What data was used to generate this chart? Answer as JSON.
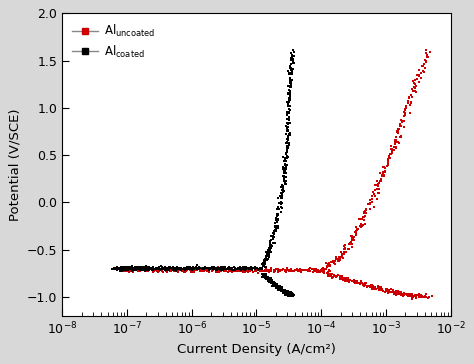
{
  "xlabel": "Current Density (A/cm²)",
  "ylabel": "Potential (V/SCE)",
  "xlim": [
    1e-08,
    0.01
  ],
  "ylim": [
    -1.2,
    2.0
  ],
  "yticks": [
    -1.0,
    -0.5,
    0.0,
    0.5,
    1.0,
    1.5,
    2.0
  ],
  "background_color": "#d8d8d8",
  "plot_bg_color": "#ffffff",
  "red_passive_log_x": [
    -7.1,
    -6.8,
    -6.5,
    -6.2,
    -5.9,
    -5.6,
    -5.3,
    -5.0,
    -4.7,
    -4.4,
    -4.1,
    -3.9
  ],
  "red_passive_y": [
    -0.72,
    -0.72,
    -0.72,
    -0.72,
    -0.72,
    -0.72,
    -0.72,
    -0.72,
    -0.72,
    -0.72,
    -0.72,
    -0.72
  ],
  "red_anodic_log_x": [
    -3.9,
    -3.7,
    -3.5,
    -3.3,
    -3.1,
    -2.9,
    -2.75,
    -2.55,
    -2.35
  ],
  "red_anodic_y": [
    -0.68,
    -0.58,
    -0.38,
    -0.1,
    0.22,
    0.55,
    0.85,
    1.25,
    1.6
  ],
  "red_cathodic_log_x": [
    -3.9,
    -3.7,
    -3.5,
    -3.3,
    -3.1,
    -2.9,
    -2.75,
    -2.55,
    -2.35
  ],
  "red_cathodic_y": [
    -0.76,
    -0.8,
    -0.84,
    -0.88,
    -0.92,
    -0.95,
    -0.97,
    -0.99,
    -1.0
  ],
  "blk_passive_log_x": [
    -7.2,
    -7.1,
    -7.0,
    -6.9,
    -6.8,
    -6.7,
    -6.5,
    -6.3,
    -6.1,
    -5.9,
    -5.7,
    -5.5,
    -5.3,
    -5.1,
    -4.9
  ],
  "blk_passive_y": [
    -0.7,
    -0.7,
    -0.7,
    -0.7,
    -0.7,
    -0.7,
    -0.7,
    -0.7,
    -0.7,
    -0.7,
    -0.7,
    -0.7,
    -0.7,
    -0.7,
    -0.7
  ],
  "blk_anodic_log_x": [
    -4.9,
    -4.8,
    -4.7,
    -4.6,
    -4.55,
    -4.52,
    -4.5,
    -4.48,
    -4.45
  ],
  "blk_anodic_y": [
    -0.68,
    -0.5,
    -0.25,
    0.1,
    0.4,
    0.7,
    1.0,
    1.3,
    1.6
  ],
  "blk_cathodic_log_x": [
    -4.9,
    -4.8,
    -4.7,
    -4.6,
    -4.55,
    -4.52,
    -4.5,
    -4.48,
    -4.45
  ],
  "blk_cathodic_y": [
    -0.76,
    -0.82,
    -0.88,
    -0.93,
    -0.95,
    -0.96,
    -0.97,
    -0.97,
    -0.97
  ]
}
